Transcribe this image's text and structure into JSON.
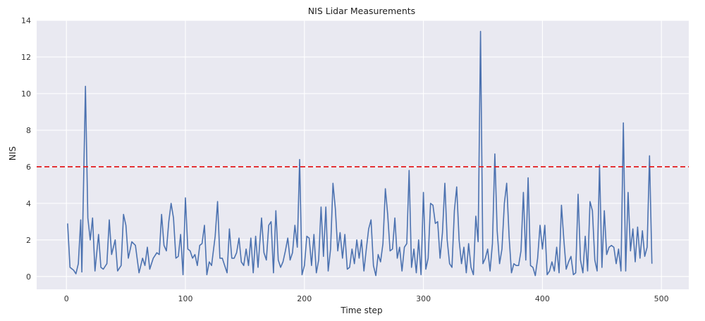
{
  "chart_data": {
    "type": "line",
    "title": "NIS Lidar Measurements",
    "xlabel": "Time step",
    "ylabel": "NIS",
    "xlim": [
      -25,
      523
    ],
    "ylim": [
      -0.7,
      14
    ],
    "xticks": [
      0,
      100,
      200,
      300,
      400,
      500
    ],
    "yticks": [
      0,
      2,
      4,
      6,
      8,
      10,
      12,
      14
    ],
    "grid": true,
    "background": "#e9e9f1",
    "line_color": "#4c72b0",
    "threshold": {
      "value": 6.0,
      "color": "#e41a1c",
      "style": "dashed"
    },
    "anchors": [
      [
        1,
        2.9
      ],
      [
        3,
        0.5
      ],
      [
        6,
        0.35
      ],
      [
        8,
        0.15
      ],
      [
        10,
        0.7
      ],
      [
        12,
        3.1
      ],
      [
        13,
        0.25
      ],
      [
        16,
        10.4
      ],
      [
        18,
        3.2
      ],
      [
        20,
        2.0
      ],
      [
        22,
        3.2
      ],
      [
        24,
        0.3
      ],
      [
        27,
        2.3
      ],
      [
        29,
        0.5
      ],
      [
        31,
        0.4
      ],
      [
        34,
        0.7
      ],
      [
        36,
        3.1
      ],
      [
        38,
        1.2
      ],
      [
        41,
        2.0
      ],
      [
        43,
        0.3
      ],
      [
        46,
        0.6
      ],
      [
        48,
        3.4
      ],
      [
        50,
        2.8
      ],
      [
        52,
        1.0
      ],
      [
        55,
        1.9
      ],
      [
        58,
        1.7
      ],
      [
        61,
        0.2
      ],
      [
        64,
        1.0
      ],
      [
        66,
        0.6
      ],
      [
        68,
        1.6
      ],
      [
        70,
        0.4
      ],
      [
        73,
        1.0
      ],
      [
        76,
        1.3
      ],
      [
        78,
        1.2
      ],
      [
        80,
        3.4
      ],
      [
        82,
        1.7
      ],
      [
        84,
        1.4
      ],
      [
        86,
        3.0
      ],
      [
        88,
        4.0
      ],
      [
        90,
        3.2
      ],
      [
        92,
        1.0
      ],
      [
        94,
        1.1
      ],
      [
        96,
        2.3
      ],
      [
        98,
        0.1
      ],
      [
        100,
        4.3
      ],
      [
        102,
        1.5
      ],
      [
        104,
        1.4
      ],
      [
        106,
        1.0
      ],
      [
        108,
        1.2
      ],
      [
        110,
        0.6
      ],
      [
        112,
        1.7
      ],
      [
        114,
        1.8
      ],
      [
        116,
        2.8
      ],
      [
        118,
        0.1
      ],
      [
        120,
        0.8
      ],
      [
        122,
        0.6
      ],
      [
        125,
        2.2
      ],
      [
        127,
        4.1
      ],
      [
        129,
        1.0
      ],
      [
        131,
        1.0
      ],
      [
        133,
        0.6
      ],
      [
        135,
        0.2
      ],
      [
        137,
        2.6
      ],
      [
        139,
        1.0
      ],
      [
        141,
        1.0
      ],
      [
        143,
        1.3
      ],
      [
        145,
        2.1
      ],
      [
        147,
        0.8
      ],
      [
        149,
        0.6
      ],
      [
        151,
        1.5
      ],
      [
        153,
        0.6
      ],
      [
        155,
        2.1
      ],
      [
        157,
        0.2
      ],
      [
        159,
        2.2
      ],
      [
        161,
        0.5
      ],
      [
        164,
        3.2
      ],
      [
        166,
        1.3
      ],
      [
        168,
        0.9
      ],
      [
        170,
        2.8
      ],
      [
        172,
        3.0
      ],
      [
        174,
        0.2
      ],
      [
        176,
        3.6
      ],
      [
        178,
        0.9
      ],
      [
        180,
        0.5
      ],
      [
        182,
        0.8
      ],
      [
        184,
        1.4
      ],
      [
        186,
        2.1
      ],
      [
        188,
        0.9
      ],
      [
        190,
        1.3
      ],
      [
        192,
        2.8
      ],
      [
        194,
        1.6
      ],
      [
        196,
        6.4
      ],
      [
        198,
        0.1
      ],
      [
        200,
        0.6
      ],
      [
        202,
        2.2
      ],
      [
        204,
        2.1
      ],
      [
        206,
        0.6
      ],
      [
        208,
        2.3
      ],
      [
        210,
        0.2
      ],
      [
        212,
        0.9
      ],
      [
        214,
        3.8
      ],
      [
        216,
        1.1
      ],
      [
        218,
        3.8
      ],
      [
        220,
        0.3
      ],
      [
        222,
        1.5
      ],
      [
        224,
        5.1
      ],
      [
        226,
        3.7
      ],
      [
        228,
        1.4
      ],
      [
        230,
        2.4
      ],
      [
        232,
        1.0
      ],
      [
        234,
        2.3
      ],
      [
        236,
        0.4
      ],
      [
        238,
        0.5
      ],
      [
        240,
        1.5
      ],
      [
        242,
        0.7
      ],
      [
        244,
        2.0
      ],
      [
        246,
        1.0
      ],
      [
        248,
        2.0
      ],
      [
        250,
        0.3
      ],
      [
        252,
        1.5
      ],
      [
        254,
        2.6
      ],
      [
        256,
        3.1
      ],
      [
        258,
        0.6
      ],
      [
        260,
        0.05
      ],
      [
        262,
        1.2
      ],
      [
        264,
        0.8
      ],
      [
        266,
        1.8
      ],
      [
        268,
        4.8
      ],
      [
        270,
        3.4
      ],
      [
        272,
        1.4
      ],
      [
        274,
        1.5
      ],
      [
        276,
        3.2
      ],
      [
        278,
        1.0
      ],
      [
        280,
        1.6
      ],
      [
        282,
        0.3
      ],
      [
        284,
        1.6
      ],
      [
        286,
        1.8
      ],
      [
        288,
        5.8
      ],
      [
        290,
        0.5
      ],
      [
        292,
        1.5
      ],
      [
        294,
        0.2
      ],
      [
        296,
        2.0
      ],
      [
        298,
        0.1
      ],
      [
        300,
        4.6
      ],
      [
        302,
        0.4
      ],
      [
        304,
        1.0
      ],
      [
        306,
        4.0
      ],
      [
        308,
        3.9
      ],
      [
        310,
        2.9
      ],
      [
        312,
        3.0
      ],
      [
        314,
        1.0
      ],
      [
        316,
        2.4
      ],
      [
        318,
        5.1
      ],
      [
        320,
        2.0
      ],
      [
        322,
        0.7
      ],
      [
        324,
        0.5
      ],
      [
        326,
        3.6
      ],
      [
        328,
        4.9
      ],
      [
        330,
        2.0
      ],
      [
        332,
        0.7
      ],
      [
        334,
        1.6
      ],
      [
        336,
        0.2
      ],
      [
        338,
        1.8
      ],
      [
        340,
        0.5
      ],
      [
        342,
        0.1
      ],
      [
        344,
        3.3
      ],
      [
        346,
        1.9
      ],
      [
        348,
        13.4
      ],
      [
        350,
        0.7
      ],
      [
        352,
        1.0
      ],
      [
        354,
        1.5
      ],
      [
        356,
        0.3
      ],
      [
        358,
        1.8
      ],
      [
        360,
        6.7
      ],
      [
        362,
        2.5
      ],
      [
        364,
        0.7
      ],
      [
        366,
        1.5
      ],
      [
        368,
        4.0
      ],
      [
        370,
        5.1
      ],
      [
        372,
        2.2
      ],
      [
        374,
        0.2
      ],
      [
        376,
        0.7
      ],
      [
        378,
        0.6
      ],
      [
        380,
        0.6
      ],
      [
        382,
        1.4
      ],
      [
        384,
        4.6
      ],
      [
        386,
        0.9
      ],
      [
        388,
        5.4
      ],
      [
        390,
        0.6
      ],
      [
        392,
        0.5
      ],
      [
        394,
        0.05
      ],
      [
        396,
        1.0
      ],
      [
        398,
        2.8
      ],
      [
        400,
        1.5
      ],
      [
        402,
        2.8
      ],
      [
        404,
        0.1
      ],
      [
        406,
        0.3
      ],
      [
        408,
        0.8
      ],
      [
        410,
        0.3
      ],
      [
        412,
        1.6
      ],
      [
        414,
        0.2
      ],
      [
        416,
        3.9
      ],
      [
        418,
        2.0
      ],
      [
        420,
        0.4
      ],
      [
        422,
        0.8
      ],
      [
        424,
        1.1
      ],
      [
        426,
        0.1
      ],
      [
        428,
        0.2
      ],
      [
        430,
        4.5
      ],
      [
        432,
        0.9
      ],
      [
        434,
        0.2
      ],
      [
        436,
        2.2
      ],
      [
        438,
        0.3
      ],
      [
        440,
        4.1
      ],
      [
        442,
        3.6
      ],
      [
        444,
        0.9
      ],
      [
        446,
        0.3
      ],
      [
        448,
        6.1
      ],
      [
        450,
        0.5
      ],
      [
        452,
        3.6
      ],
      [
        454,
        1.2
      ],
      [
        456,
        1.6
      ],
      [
        458,
        1.7
      ],
      [
        460,
        1.6
      ],
      [
        462,
        0.7
      ],
      [
        464,
        1.5
      ],
      [
        466,
        0.3
      ],
      [
        468,
        8.4
      ],
      [
        470,
        0.3
      ],
      [
        472,
        4.6
      ],
      [
        474,
        1.4
      ],
      [
        476,
        2.6
      ],
      [
        478,
        0.8
      ],
      [
        480,
        2.7
      ],
      [
        482,
        1.0
      ],
      [
        484,
        2.5
      ],
      [
        486,
        1.1
      ],
      [
        488,
        1.6
      ],
      [
        490,
        6.6
      ],
      [
        492,
        0.7
      ]
    ]
  }
}
